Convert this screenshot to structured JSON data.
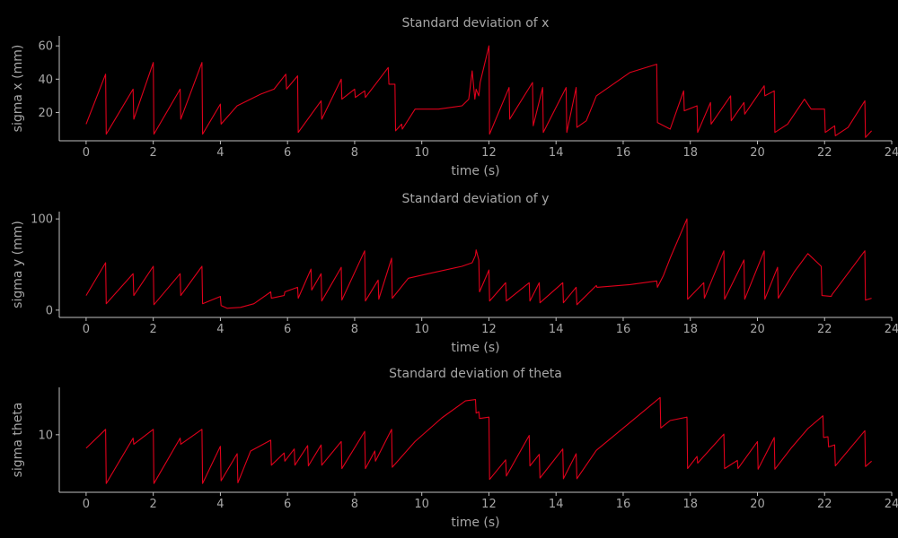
{
  "colors": {
    "background": "#000000",
    "series": "#e0001b",
    "text": "#a6a6a6",
    "axes": "#bfbfbf"
  },
  "chart_data": [
    {
      "type": "line",
      "title": "Standard deviation of x",
      "xlabel": "time (s)",
      "ylabel": "sigma x (mm)",
      "xlim": [
        -0.8,
        24
      ],
      "ylim": [
        3,
        66
      ],
      "xticks": [
        0,
        2,
        4,
        6,
        8,
        10,
        12,
        14,
        16,
        18,
        20,
        22,
        24
      ],
      "yticks": [
        20,
        40,
        60
      ],
      "grid": false,
      "series": [
        {
          "x": [
            0,
            0.58,
            0.6,
            1.4,
            1.42,
            2.0,
            2.02,
            2.8,
            2.82,
            3.45,
            3.47,
            4.0,
            4.02,
            4.5,
            5.2,
            5.6,
            5.95,
            5.97,
            6.3,
            6.32,
            7.0,
            7.02,
            7.6,
            7.62,
            8.0,
            8.02,
            8.3,
            8.32,
            9.0,
            9.02,
            9.2,
            9.22,
            9.4,
            9.42,
            9.8,
            10.5,
            11.2,
            11.4,
            11.5,
            11.58,
            11.62,
            11.7,
            11.74,
            12.0,
            12.02,
            12.6,
            12.62,
            13.3,
            13.32,
            13.6,
            13.62,
            14.3,
            14.32,
            14.6,
            14.62,
            14.9,
            15.2,
            16.2,
            17.0,
            17.02,
            17.4,
            17.8,
            17.82,
            18.2,
            18.22,
            18.6,
            18.62,
            19.2,
            19.22,
            19.6,
            19.62,
            20.2,
            20.22,
            20.5,
            20.52,
            20.9,
            21.4,
            21.6,
            22.0,
            22.02,
            22.3,
            22.32,
            22.7,
            23.2,
            23.22,
            23.4
          ],
          "y": [
            13,
            43,
            7,
            34,
            16,
            50,
            7,
            34,
            16,
            50,
            7,
            25,
            13,
            24,
            31,
            34,
            43,
            34,
            42,
            8,
            27,
            16,
            40,
            28,
            34,
            29,
            33,
            29,
            47,
            37,
            37,
            9,
            13,
            10,
            22,
            22,
            24,
            28,
            45,
            28,
            34,
            30,
            38,
            60,
            7,
            35,
            16,
            38,
            12,
            35,
            8,
            35,
            8,
            35,
            11,
            15,
            30,
            44,
            49,
            14,
            10,
            33,
            21,
            24,
            8,
            26,
            13,
            30,
            15,
            26,
            19,
            36,
            30,
            33,
            8,
            13,
            28,
            22,
            22,
            8,
            12,
            6,
            11,
            27,
            5,
            9
          ]
        }
      ]
    },
    {
      "type": "line",
      "title": "Standard deviation of y",
      "xlabel": "time (s)",
      "ylabel": "sigma y (mm)",
      "xlim": [
        -0.8,
        24
      ],
      "ylim": [
        -8,
        108
      ],
      "xticks": [
        0,
        2,
        4,
        6,
        8,
        10,
        12,
        14,
        16,
        18,
        20,
        22,
        24
      ],
      "yticks": [
        0,
        100
      ],
      "grid": false,
      "series": [
        {
          "x": [
            0,
            0.58,
            0.6,
            1.4,
            1.42,
            2.0,
            2.02,
            2.8,
            2.82,
            3.45,
            3.47,
            4.0,
            4.02,
            4.2,
            4.6,
            5.0,
            5.5,
            5.52,
            5.9,
            5.92,
            6.3,
            6.32,
            6.7,
            6.72,
            7.0,
            7.02,
            7.6,
            7.62,
            8.3,
            8.32,
            8.7,
            8.72,
            9.1,
            9.12,
            9.6,
            10.2,
            11.2,
            11.5,
            11.6,
            11.62,
            11.7,
            11.72,
            12.0,
            12.02,
            12.5,
            12.52,
            13.2,
            13.22,
            13.5,
            13.52,
            14.2,
            14.22,
            14.6,
            14.62,
            15.2,
            15.22,
            16.2,
            17.0,
            17.02,
            17.2,
            17.4,
            17.9,
            17.92,
            18.4,
            18.42,
            19.0,
            19.02,
            19.6,
            19.62,
            20.2,
            20.22,
            20.6,
            20.62,
            21.1,
            21.5,
            21.9,
            21.92,
            22.2,
            22.22,
            23.2,
            23.22,
            23.4
          ],
          "y": [
            16,
            52,
            7,
            40,
            16,
            48,
            6,
            40,
            16,
            48,
            7,
            15,
            5,
            2,
            3,
            7,
            20,
            13,
            16,
            20,
            25,
            13,
            45,
            22,
            40,
            10,
            47,
            11,
            65,
            10,
            33,
            12,
            57,
            13,
            35,
            40,
            48,
            52,
            60,
            66,
            55,
            20,
            44,
            10,
            30,
            10,
            30,
            10,
            30,
            8,
            30,
            8,
            25,
            6,
            27,
            25,
            28,
            32,
            25,
            38,
            57,
            100,
            12,
            30,
            13,
            65,
            12,
            55,
            12,
            65,
            12,
            47,
            13,
            42,
            62,
            48,
            16,
            15,
            17,
            65,
            11,
            13
          ]
        }
      ]
    },
    {
      "type": "line",
      "title": "Standard deviation of theta",
      "xlabel": "time (s)",
      "ylabel": "sigma theta",
      "xlim": [
        -0.8,
        24
      ],
      "ylim": [
        1.5,
        17
      ],
      "xticks": [
        0,
        2,
        4,
        6,
        8,
        10,
        12,
        14,
        16,
        18,
        20,
        22,
        24
      ],
      "yticks": [
        10
      ],
      "grid": false,
      "series": [
        {
          "x": [
            0,
            0.58,
            0.6,
            1.4,
            1.42,
            2.0,
            2.02,
            2.8,
            2.82,
            3.45,
            3.47,
            4.0,
            4.02,
            4.5,
            4.52,
            4.9,
            5.5,
            5.52,
            5.9,
            5.92,
            6.2,
            6.22,
            6.6,
            6.62,
            7.0,
            7.02,
            7.6,
            7.62,
            8.3,
            8.32,
            8.6,
            8.62,
            9.1,
            9.12,
            9.8,
            10.6,
            11.3,
            11.6,
            11.62,
            11.7,
            11.72,
            12.0,
            12.02,
            12.5,
            12.52,
            13.2,
            13.22,
            13.5,
            13.52,
            14.2,
            14.22,
            14.6,
            14.62,
            15.2,
            16.2,
            17.1,
            17.12,
            17.4,
            17.9,
            17.92,
            18.2,
            18.22,
            19.0,
            19.02,
            19.4,
            19.42,
            20.0,
            20.02,
            20.5,
            20.52,
            21.0,
            21.5,
            21.95,
            21.97,
            22.1,
            22.12,
            22.3,
            22.32,
            23.2,
            23.22,
            23.4
          ],
          "y": [
            8,
            10.8,
            2.8,
            9.5,
            8.6,
            10.8,
            2.8,
            9.5,
            8.6,
            10.8,
            2.8,
            8.3,
            3.2,
            7.2,
            2.9,
            7.6,
            9.2,
            5.5,
            7.3,
            6.1,
            7.9,
            5.5,
            8.4,
            5.4,
            8.5,
            5.5,
            9.0,
            5.0,
            10.5,
            5.0,
            7.6,
            6.1,
            10.8,
            5.2,
            9.0,
            12.5,
            15.0,
            15.2,
            13.2,
            13.4,
            12.4,
            12.6,
            3.4,
            6.3,
            3.9,
            9.9,
            5.4,
            7.1,
            3.6,
            7.9,
            3.5,
            7.2,
            3.5,
            7.7,
            11.8,
            15.5,
            11.0,
            12.1,
            12.6,
            5.0,
            6.8,
            5.8,
            10.1,
            5.0,
            6.2,
            5.0,
            9.0,
            4.9,
            9.6,
            4.9,
            8.0,
            10.9,
            12.8,
            9.6,
            9.7,
            8.2,
            8.5,
            5.4,
            10.6,
            5.3,
            6.1
          ]
        }
      ]
    }
  ]
}
